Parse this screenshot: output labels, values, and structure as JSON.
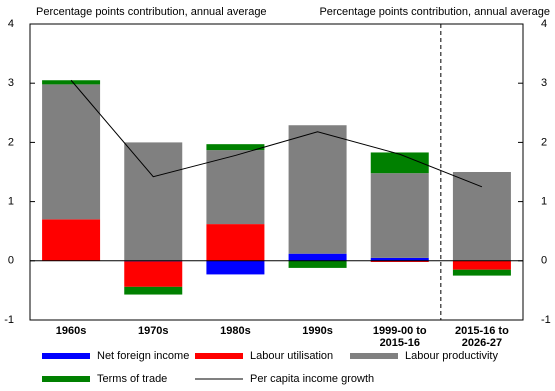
{
  "chart_data": {
    "type": "bar",
    "stacked": true,
    "titles": [
      "Percentage points contribution, annual average",
      "Percentage points contribution, annual average"
    ],
    "categories": [
      "1960s",
      "1970s",
      "1980s",
      "1990s",
      "1999-00 to\n2015-16",
      "2015-16 to\n2026-27"
    ],
    "series": [
      {
        "name": "Net foreign income",
        "color": "#0000ff",
        "values": [
          0,
          -0.01,
          -0.23,
          0.12,
          0.05,
          0
        ]
      },
      {
        "name": "Labour utilisation",
        "color": "#ff0000",
        "values": [
          0.7,
          -0.43,
          0.62,
          0,
          -0.02,
          -0.15
        ]
      },
      {
        "name": "Labour productivity",
        "color": "#808080",
        "values": [
          2.28,
          2.0,
          1.25,
          2.17,
          1.43,
          1.5
        ]
      },
      {
        "name": "Terms of trade",
        "color": "#008000",
        "values": [
          0.07,
          -0.13,
          0.1,
          -0.12,
          0.35,
          -0.1
        ]
      },
      {
        "name": "Per capita income growth",
        "color": "#000000",
        "type": "line",
        "values": [
          3.05,
          1.42,
          1.78,
          2.18,
          1.8,
          1.25
        ]
      }
    ],
    "ylim": [
      -1,
      4
    ],
    "yticks": [
      -1,
      0,
      1,
      2,
      3,
      4
    ],
    "grid": false
  }
}
